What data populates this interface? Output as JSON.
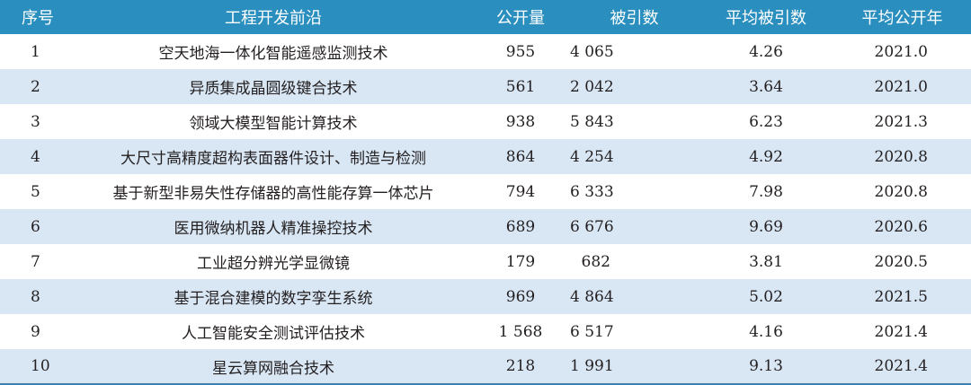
{
  "table": {
    "headers": [
      "序号",
      "工程开发前沿",
      "公开量",
      "被引数",
      "平均被引数",
      "平均公开年"
    ],
    "rows": [
      [
        "1",
        "空天地海一体化智能遥感监测技术",
        "955",
        "4 065",
        "4.26",
        "2021.0"
      ],
      [
        "2",
        "异质集成晶圆级键合技术",
        "561",
        "2 042",
        "3.64",
        "2021.0"
      ],
      [
        "3",
        "领域大模型智能计算技术",
        "938",
        "5 843",
        "6.23",
        "2021.3"
      ],
      [
        "4",
        "大尺寸高精度超构表面器件设计、制造与检测",
        "864",
        "4 254",
        "4.92",
        "2020.8"
      ],
      [
        "5",
        "基于新型非易失性存储器的高性能存算一体芯片",
        "794",
        "6 333",
        "7.98",
        "2020.8"
      ],
      [
        "6",
        "医用微纳机器人精准操控技术",
        "689",
        "6 676",
        "9.69",
        "2020.6"
      ],
      [
        "7",
        "工业超分辨光学显微镜",
        "179",
        "682",
        "3.81",
        "2020.5"
      ],
      [
        "8",
        "基于混合建模的数字孪生系统",
        "969",
        "4 864",
        "5.02",
        "2021.5"
      ],
      [
        "9",
        "人工智能安全测试评估技术",
        "1 568",
        "6 517",
        "4.16",
        "2021.4"
      ],
      [
        "10",
        "星云算网融合技术",
        "218",
        "1 991",
        "9.13",
        "2021.4"
      ]
    ]
  }
}
